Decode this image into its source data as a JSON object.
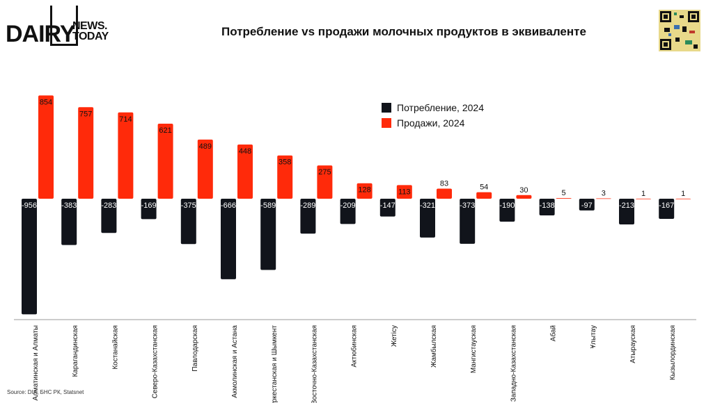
{
  "brand": {
    "main": "DAIRY",
    "sub_line1": "NEWS.",
    "sub_line2": "TODAY"
  },
  "title": "Потребление vs продажи молочных продуктов в эквиваленте",
  "source": "Source: DIA, БНС РК, Statsnet",
  "colors": {
    "consumption": "#11141b",
    "sales": "#ff2a0a"
  },
  "chart_data": {
    "type": "bar",
    "title": "Потребление vs продажи молочных продуктов в эквиваленте",
    "categories": [
      "Алматинская и Алматы",
      "Карагандинская",
      "Костанайская",
      "Северо-Казахстанская",
      "Павлодарская",
      "Акмолинская и Астана",
      "Туркестанская и Шымкент",
      "Восточно-Казахстанская",
      "Актюбинская",
      "Жетісу",
      "Жамбылская",
      "Мангистауская",
      "Западно-Казахстанская",
      "Абай",
      "Ұлытау",
      "Атырауская",
      "Кызылординская"
    ],
    "series": [
      {
        "name": "Потребление, 2024",
        "values": [
          -956,
          -383,
          -283,
          -169,
          -375,
          -666,
          -589,
          -289,
          -209,
          -147,
          -321,
          -373,
          -190,
          -138,
          -97,
          -213,
          -167
        ]
      },
      {
        "name": "Продажи, 2024",
        "values": [
          854,
          757,
          714,
          621,
          489,
          448,
          358,
          275,
          128,
          113,
          83,
          54,
          30,
          5,
          3,
          1,
          1
        ]
      }
    ],
    "legend": "top-right",
    "grid": false
  }
}
